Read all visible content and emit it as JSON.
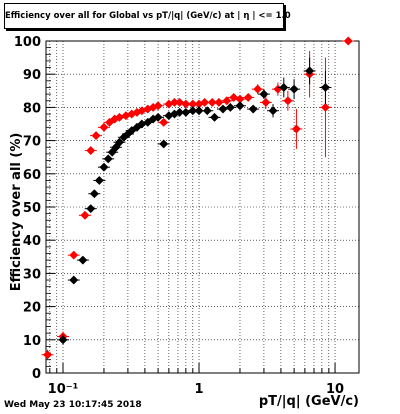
{
  "title": "Efficiency over all for Global vs pT/|q| (GeV/c) at | η | <= 1.0",
  "timestamp": "Wed May 23 10:17:45 2018",
  "chart_data": {
    "type": "scatter",
    "title": "Efficiency over all for Global vs pT/|q| (GeV/c) at | η | <= 1.0",
    "xlabel": "pT/|q| (GeV/c)",
    "ylabel": "Efficiency over all (%)",
    "xscale": "log",
    "xlim": [
      0.075,
      15
    ],
    "ylim": [
      0,
      100
    ],
    "grid": true,
    "y_ticks": [
      0,
      10,
      20,
      30,
      40,
      50,
      60,
      70,
      80,
      90,
      100
    ],
    "x_ticks": [
      {
        "value": 0.1,
        "label": "10⁻¹"
      },
      {
        "value": 1,
        "label": "1"
      },
      {
        "value": 10,
        "label": "10"
      }
    ],
    "series": [
      {
        "color": "#ff0000",
        "points": [
          [
            0.077,
            5.5,
            1.5
          ],
          [
            0.1,
            11,
            1.5
          ],
          [
            0.12,
            35.5,
            1
          ],
          [
            0.145,
            47.5,
            1
          ],
          [
            0.16,
            67,
            1
          ],
          [
            0.175,
            71.5,
            1
          ],
          [
            0.2,
            74,
            0.8
          ],
          [
            0.22,
            75.5,
            0.8
          ],
          [
            0.24,
            76.5,
            0.8
          ],
          [
            0.26,
            77,
            0.8
          ],
          [
            0.29,
            77.5,
            0.8
          ],
          [
            0.32,
            78,
            0.8
          ],
          [
            0.35,
            78.5,
            0.8
          ],
          [
            0.38,
            79,
            0.8
          ],
          [
            0.42,
            79.5,
            0.8
          ],
          [
            0.46,
            80,
            0.8
          ],
          [
            0.5,
            80.5,
            0.8
          ],
          [
            0.55,
            75.5,
            1
          ],
          [
            0.6,
            81,
            0.8
          ],
          [
            0.66,
            81.5,
            0.8
          ],
          [
            0.72,
            81.5,
            0.8
          ],
          [
            0.8,
            81,
            0.8
          ],
          [
            0.9,
            81,
            0.8
          ],
          [
            1.0,
            81,
            0.8
          ],
          [
            1.1,
            81.5,
            0.8
          ],
          [
            1.25,
            81.5,
            0.8
          ],
          [
            1.4,
            81.5,
            0.8
          ],
          [
            1.6,
            82,
            0.8
          ],
          [
            1.8,
            83,
            1
          ],
          [
            2.0,
            82.5,
            1
          ],
          [
            2.3,
            83,
            1
          ],
          [
            2.7,
            85.5,
            1.5
          ],
          [
            3.1,
            81.5,
            2
          ],
          [
            3.8,
            85.5,
            2
          ],
          [
            4.5,
            82,
            3
          ],
          [
            5.2,
            73.5,
            6
          ],
          [
            6.5,
            90,
            7
          ],
          [
            8.5,
            80,
            15
          ],
          [
            12.5,
            100,
            0
          ]
        ]
      },
      {
        "color": "#000000",
        "points": [
          [
            0.1,
            10,
            1.5
          ],
          [
            0.12,
            28,
            1
          ],
          [
            0.14,
            34,
            1
          ],
          [
            0.16,
            49.5,
            1
          ],
          [
            0.17,
            54,
            1
          ],
          [
            0.185,
            58,
            1
          ],
          [
            0.2,
            62,
            0.8
          ],
          [
            0.215,
            64.5,
            0.8
          ],
          [
            0.23,
            66.5,
            0.8
          ],
          [
            0.245,
            68,
            0.8
          ],
          [
            0.26,
            69.5,
            0.8
          ],
          [
            0.28,
            71,
            0.8
          ],
          [
            0.3,
            72,
            0.8
          ],
          [
            0.32,
            73,
            0.8
          ],
          [
            0.35,
            74,
            0.8
          ],
          [
            0.38,
            75,
            0.8
          ],
          [
            0.42,
            75.5,
            0.8
          ],
          [
            0.46,
            76.5,
            0.8
          ],
          [
            0.5,
            77,
            0.8
          ],
          [
            0.55,
            69,
            1
          ],
          [
            0.6,
            77.5,
            0.8
          ],
          [
            0.66,
            78,
            0.8
          ],
          [
            0.72,
            78.5,
            0.8
          ],
          [
            0.8,
            78.5,
            0.8
          ],
          [
            0.9,
            79,
            0.8
          ],
          [
            1.0,
            79,
            0.8
          ],
          [
            1.15,
            79,
            0.8
          ],
          [
            1.3,
            77,
            1
          ],
          [
            1.5,
            79.5,
            0.8
          ],
          [
            1.7,
            80,
            1
          ],
          [
            2.0,
            80.5,
            1
          ],
          [
            2.5,
            79.5,
            1
          ],
          [
            3.0,
            84,
            1.5
          ],
          [
            3.5,
            79,
            2
          ],
          [
            4.2,
            86,
            3
          ],
          [
            5.0,
            85.5,
            3
          ],
          [
            6.5,
            91,
            4
          ],
          [
            8.5,
            86,
            5
          ]
        ]
      }
    ]
  }
}
